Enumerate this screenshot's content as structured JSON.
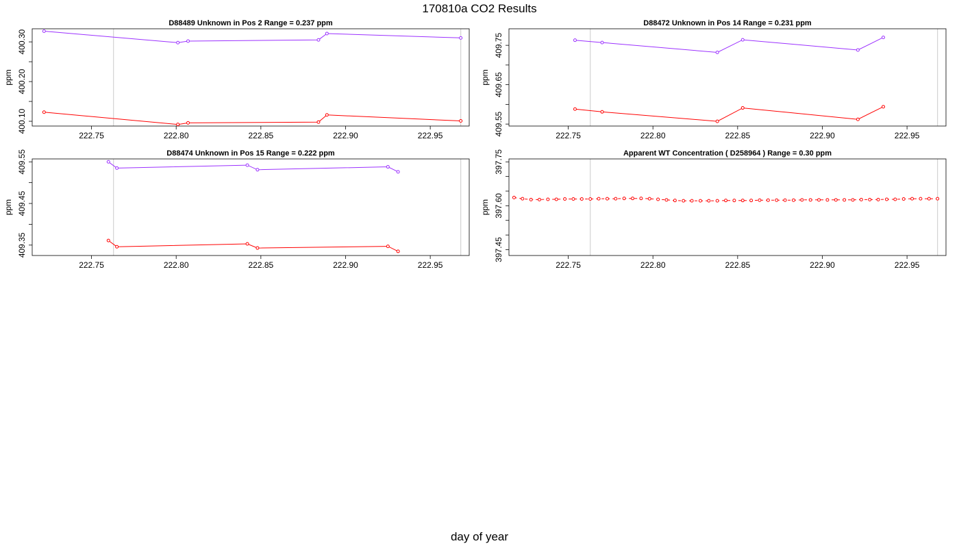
{
  "page_title": "170810a  CO2 Results",
  "x_axis_label": "day of year",
  "colors": {
    "upper_series": "#9b30ff",
    "lower_series": "#ff0000",
    "ref_line": "#d3d3d3",
    "axis": "#000000"
  },
  "chart_data": [
    {
      "type": "line",
      "title": "D88489    Unknown in Pos 2         Range =  0.237 ppm",
      "ylabel": "ppm",
      "xlim": [
        222.715,
        222.973
      ],
      "ylim": [
        400.088,
        400.333
      ],
      "x_ticks": [
        222.75,
        222.8,
        222.85,
        222.9,
        222.95
      ],
      "x_tick_labels": [
        "222.75",
        "222.80",
        "222.85",
        "222.90",
        "222.95"
      ],
      "y_ticks": [
        400.1,
        400.15,
        400.2,
        400.25,
        400.3
      ],
      "y_tick_labels": [
        "400.10",
        "",
        "400.20",
        "",
        "400.30"
      ],
      "ref_lines_x": [
        222.763,
        222.968
      ],
      "series": [
        {
          "color": "upper",
          "x": [
            222.722,
            222.801,
            222.807,
            222.884,
            222.889,
            222.968
          ],
          "y": [
            400.327,
            400.298,
            400.302,
            400.305,
            400.321,
            400.31
          ]
        },
        {
          "color": "lower",
          "x": [
            222.722,
            222.801,
            222.807,
            222.884,
            222.889,
            222.968
          ],
          "y": [
            400.123,
            400.092,
            400.096,
            400.098,
            400.116,
            400.101
          ]
        }
      ]
    },
    {
      "type": "line",
      "title": "D88472    Unknown in Pos 14         Range =  0.231 ppm",
      "ylabel": "ppm",
      "xlim": [
        222.715,
        222.973
      ],
      "ylim": [
        409.545,
        409.792
      ],
      "x_ticks": [
        222.75,
        222.8,
        222.85,
        222.9,
        222.95
      ],
      "x_tick_labels": [
        "222.75",
        "222.80",
        "222.85",
        "222.90",
        "222.95"
      ],
      "y_ticks": [
        409.55,
        409.6,
        409.65,
        409.7,
        409.75
      ],
      "y_tick_labels": [
        "409.55",
        "",
        "409.65",
        "",
        "409.75"
      ],
      "ref_lines_x": [
        222.763,
        222.968
      ],
      "series": [
        {
          "color": "upper",
          "x": [
            222.754,
            222.77,
            222.838,
            222.853,
            222.921,
            222.936
          ],
          "y": [
            409.763,
            409.757,
            409.732,
            409.764,
            409.738,
            409.77
          ]
        },
        {
          "color": "lower",
          "x": [
            222.754,
            222.77,
            222.838,
            222.853,
            222.921,
            222.936
          ],
          "y": [
            409.588,
            409.581,
            409.557,
            409.591,
            409.562,
            409.594
          ]
        }
      ]
    },
    {
      "type": "line",
      "title": "D88474    Unknown in Pos 15         Range =  0.222 ppm",
      "ylabel": "ppm",
      "xlim": [
        222.715,
        222.973
      ],
      "ylim": [
        409.325,
        409.557
      ],
      "x_ticks": [
        222.75,
        222.8,
        222.85,
        222.9,
        222.95
      ],
      "x_tick_labels": [
        "222.75",
        "222.80",
        "222.85",
        "222.90",
        "222.95"
      ],
      "y_ticks": [
        409.35,
        409.4,
        409.45,
        409.5,
        409.55
      ],
      "y_tick_labels": [
        "409.35",
        "",
        "409.45",
        "",
        "409.55"
      ],
      "ref_lines_x": [
        222.763,
        222.968
      ],
      "series": [
        {
          "color": "upper",
          "x": [
            222.76,
            222.765,
            222.842,
            222.848,
            222.925,
            222.931
          ],
          "y": [
            409.55,
            409.535,
            409.542,
            409.531,
            409.538,
            409.526
          ]
        },
        {
          "color": "lower",
          "x": [
            222.76,
            222.765,
            222.842,
            222.848,
            222.925,
            222.931
          ],
          "y": [
            409.361,
            409.346,
            409.353,
            409.343,
            409.347,
            409.335
          ]
        }
      ]
    },
    {
      "type": "scatter",
      "title": "Apparent WT Concentration ( D258964 )         Range = 0.30 ppm",
      "ylabel": "ppm",
      "xlim": [
        222.715,
        222.973
      ],
      "ylim": [
        397.43,
        397.76
      ],
      "x_ticks": [
        222.75,
        222.8,
        222.85,
        222.9,
        222.95
      ],
      "x_tick_labels": [
        "222.75",
        "222.80",
        "222.85",
        "222.90",
        "222.95"
      ],
      "y_ticks": [
        397.45,
        397.5,
        397.55,
        397.6,
        397.65,
        397.7,
        397.75
      ],
      "y_tick_labels": [
        "397.45",
        "",
        "",
        "397.60",
        "",
        "",
        "397.75"
      ],
      "ref_lines_x": [
        222.763,
        222.968
      ],
      "dashed": true,
      "series": [
        {
          "color": "lower",
          "x": [
            222.718,
            222.723,
            222.728,
            222.733,
            222.738,
            222.743,
            222.748,
            222.753,
            222.758,
            222.763,
            222.768,
            222.773,
            222.778,
            222.783,
            222.788,
            222.793,
            222.798,
            222.803,
            222.808,
            222.813,
            222.818,
            222.823,
            222.828,
            222.833,
            222.838,
            222.843,
            222.848,
            222.853,
            222.858,
            222.863,
            222.868,
            222.873,
            222.878,
            222.883,
            222.888,
            222.893,
            222.898,
            222.903,
            222.908,
            222.913,
            222.918,
            222.923,
            222.928,
            222.933,
            222.938,
            222.943,
            222.948,
            222.953,
            222.958,
            222.963,
            222.968
          ],
          "y": [
            397.628,
            397.624,
            397.621,
            397.621,
            397.622,
            397.622,
            397.623,
            397.623,
            397.623,
            397.623,
            397.624,
            397.624,
            397.624,
            397.625,
            397.625,
            397.625,
            397.624,
            397.622,
            397.62,
            397.618,
            397.617,
            397.617,
            397.617,
            397.617,
            397.617,
            397.618,
            397.618,
            397.618,
            397.618,
            397.619,
            397.619,
            397.619,
            397.619,
            397.619,
            397.62,
            397.62,
            397.62,
            397.62,
            397.62,
            397.62,
            397.62,
            397.621,
            397.621,
            397.621,
            397.622,
            397.622,
            397.623,
            397.624,
            397.624,
            397.624,
            397.624
          ]
        }
      ]
    }
  ]
}
